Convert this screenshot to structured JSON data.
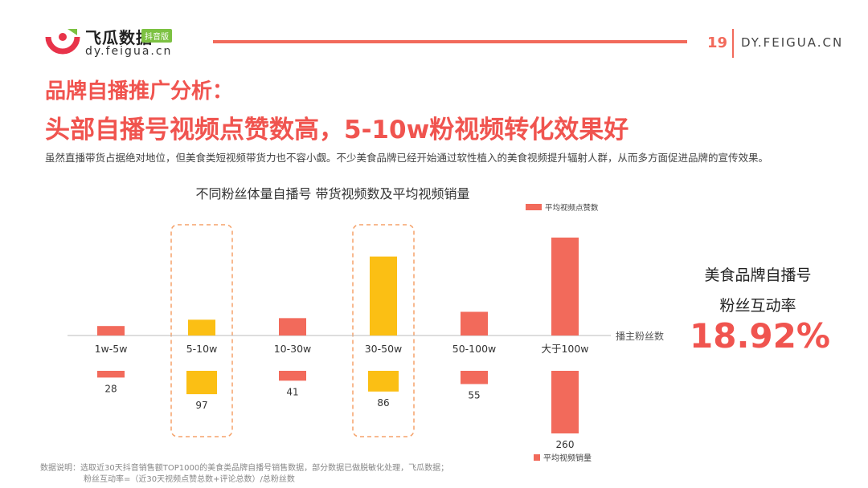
{
  "brand": {
    "name": "飞瓜数据",
    "tag": "抖音版",
    "url": "dy.feigua.cn"
  },
  "header": {
    "page_number": "19",
    "site": "DY.FEIGUA.CN"
  },
  "heading": {
    "line1": "品牌自播推广分析：",
    "line2": "头部自播号视频点赞数高，5-10w粉视频转化效果好"
  },
  "description": "虽然直播带货占据绝对地位，但美食类短视频带货力也不容小觑。不少美食品牌已经开始通过软性植入的美食视频提升辐射人群，从而多方面促进品牌的宣传效果。",
  "side_stat": {
    "line1": "美食品牌自播号",
    "line2": "粉丝互动率",
    "value": "18.92%"
  },
  "notes": {
    "line1": "数据说明：选取近30天抖音销售额TOP1000的美食类品牌自播号销售数据，部分数据已做脱敏化处理，飞瓜数据；",
    "line2": "粉丝互动率=（近30天视频点赞总数+评论总数）/总粉丝数"
  },
  "colors": {
    "accent": "#f0544f",
    "bar": "#f26a5b",
    "highlight": "#fbbf14",
    "highlight_box": "#f5a26a",
    "axis": "#bbbbbb"
  },
  "chart_data": {
    "type": "bar",
    "title": "不同粉丝体量自播号 带货视频数及平均视频销量",
    "xlabel": "播主粉丝数",
    "categories": [
      "1w-5w",
      "5-10w",
      "10-30w",
      "30-50w",
      "50-100w",
      "大于100w"
    ],
    "series": [
      {
        "name": "平均视频点赞数",
        "direction": "up",
        "values": [
          3,
          5,
          5.5,
          25,
          7.5,
          31
        ]
      },
      {
        "name": "平均视频销量",
        "direction": "down",
        "values": [
          28,
          97,
          41,
          86,
          55,
          260
        ]
      }
    ],
    "highlighted_categories": [
      "5-10w",
      "30-50w"
    ],
    "legend_upper": "平均视频点赞数",
    "legend_lower": "平均视频销量"
  }
}
